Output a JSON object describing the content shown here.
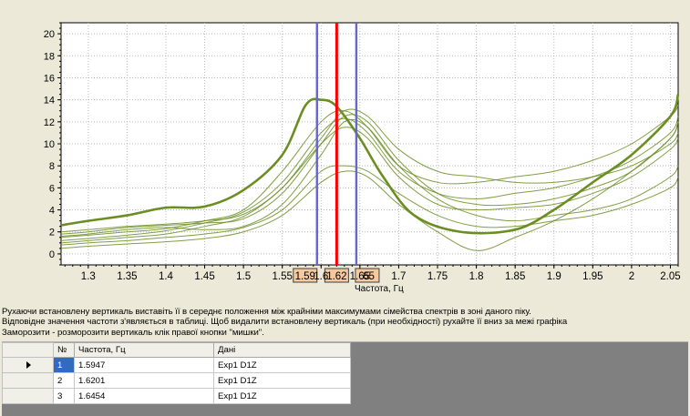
{
  "chart_data": {
    "type": "line",
    "title": "",
    "xlabel": "Частота, Гц",
    "ylabel": "",
    "xlim": [
      1.265,
      2.06
    ],
    "ylim": [
      -1,
      21
    ],
    "x_ticks": [
      "1.3",
      "1.35",
      "1.4",
      "1.45",
      "1.5",
      "1.55",
      "1.6",
      "1.65",
      "1.7",
      "1.75",
      "1.8",
      "1.85",
      "1.9",
      "1.95",
      "2",
      "2.05"
    ],
    "y_ticks": [
      "0",
      "2",
      "4",
      "6",
      "8",
      "10",
      "12",
      "14",
      "16",
      "18",
      "20"
    ],
    "grid": true,
    "line_color": "#6b8e23",
    "highlight_color": "#6b8e23",
    "series": [
      {
        "x": [
          1.265,
          1.3,
          1.35,
          1.4,
          1.45,
          1.5,
          1.55,
          1.58,
          1.6,
          1.62,
          1.65,
          1.68,
          1.72,
          1.78,
          1.85,
          1.9,
          1.95,
          2.0,
          2.05,
          2.06
        ],
        "y": [
          2.6,
          3.0,
          3.5,
          4.2,
          4.3,
          5.8,
          9.0,
          13.5,
          14.0,
          13.4,
          10.5,
          7.0,
          3.5,
          2.0,
          2.2,
          4.0,
          6.5,
          9.0,
          12.5,
          14.5
        ],
        "highlight": true
      },
      {
        "x": [
          1.265,
          1.3,
          1.35,
          1.4,
          1.45,
          1.5,
          1.55,
          1.6,
          1.63,
          1.66,
          1.7,
          1.75,
          1.8,
          1.85,
          1.9,
          1.95,
          2.0,
          2.05,
          2.06
        ],
        "y": [
          1.5,
          1.7,
          2.0,
          2.3,
          3.0,
          4.0,
          7.5,
          12.0,
          13.0,
          11.5,
          8.0,
          6.5,
          6.5,
          7.0,
          7.5,
          8.5,
          10.0,
          12.5,
          13.5
        ]
      },
      {
        "x": [
          1.265,
          1.3,
          1.35,
          1.4,
          1.45,
          1.5,
          1.55,
          1.6,
          1.63,
          1.66,
          1.7,
          1.75,
          1.8,
          1.85,
          1.9,
          1.95,
          2.0,
          2.05,
          2.06
        ],
        "y": [
          1.2,
          1.4,
          1.7,
          2.1,
          2.8,
          3.8,
          6.5,
          11.0,
          12.3,
          11.0,
          7.5,
          5.5,
          5.0,
          5.5,
          6.0,
          7.0,
          8.5,
          11.0,
          12.5
        ]
      },
      {
        "x": [
          1.265,
          1.3,
          1.35,
          1.4,
          1.45,
          1.5,
          1.55,
          1.6,
          1.63,
          1.66,
          1.7,
          1.75,
          1.8,
          1.85,
          1.9,
          1.95,
          2.0,
          2.05,
          2.06
        ],
        "y": [
          1.0,
          1.2,
          1.5,
          1.8,
          2.5,
          3.4,
          6.0,
          10.0,
          11.5,
          10.5,
          7.0,
          4.5,
          4.0,
          4.2,
          4.5,
          5.5,
          7.0,
          9.5,
          10.5
        ]
      },
      {
        "x": [
          1.265,
          1.3,
          1.35,
          1.4,
          1.45,
          1.5,
          1.55,
          1.6,
          1.63,
          1.66,
          1.7,
          1.75,
          1.8,
          1.85,
          1.9,
          1.95,
          2.0,
          2.05,
          2.06
        ],
        "y": [
          2.0,
          2.2,
          2.5,
          2.7,
          3.0,
          3.6,
          6.0,
          10.5,
          13.0,
          12.5,
          9.5,
          7.5,
          7.0,
          6.5,
          6.5,
          7.0,
          8.0,
          10.0,
          11.0
        ]
      },
      {
        "x": [
          1.265,
          1.3,
          1.35,
          1.4,
          1.45,
          1.5,
          1.55,
          1.6,
          1.63,
          1.66,
          1.7,
          1.75,
          1.8,
          1.85,
          1.9,
          1.95,
          2.0,
          2.05,
          2.06
        ],
        "y": [
          1.6,
          1.8,
          2.2,
          2.4,
          2.2,
          2.5,
          4.5,
          9.0,
          12.0,
          11.5,
          8.0,
          5.0,
          3.5,
          3.0,
          3.5,
          4.0,
          5.0,
          7.0,
          8.0
        ]
      },
      {
        "x": [
          1.265,
          1.3,
          1.35,
          1.4,
          1.45,
          1.5,
          1.55,
          1.6,
          1.63,
          1.66,
          1.7,
          1.75,
          1.8,
          1.85,
          1.9,
          1.95,
          2.0,
          2.05,
          2.06
        ],
        "y": [
          0.8,
          1.0,
          1.2,
          1.5,
          1.8,
          2.4,
          4.0,
          7.5,
          8.0,
          7.5,
          5.5,
          3.5,
          2.5,
          2.5,
          3.0,
          3.5,
          4.5,
          6.0,
          7.0
        ]
      },
      {
        "x": [
          1.265,
          1.3,
          1.35,
          1.4,
          1.45,
          1.5,
          1.55,
          1.6,
          1.63,
          1.66,
          1.7,
          1.75,
          1.8,
          1.85,
          1.9,
          1.95,
          2.0,
          2.05,
          2.06
        ],
        "y": [
          0.5,
          0.7,
          0.9,
          1.1,
          1.4,
          2.0,
          3.5,
          6.5,
          7.5,
          7.0,
          4.5,
          2.0,
          0.3,
          1.5,
          3.0,
          5.0,
          7.5,
          10.5,
          12.0
        ]
      },
      {
        "x": [
          1.265,
          1.3,
          1.35,
          1.4,
          1.45,
          1.5,
          1.55,
          1.6,
          1.63,
          1.66,
          1.7,
          1.75,
          1.8,
          1.85,
          1.9,
          1.95,
          2.0,
          2.05,
          2.06
        ],
        "y": [
          1.8,
          2.0,
          2.4,
          2.6,
          2.8,
          3.2,
          5.5,
          10.0,
          12.5,
          12.0,
          8.5,
          5.5,
          4.5,
          4.5,
          5.0,
          6.0,
          7.5,
          10.5,
          12.0
        ]
      }
    ],
    "cursor_lines": [
      {
        "x": 1.5947,
        "color": "#6666cc",
        "label": "1.59"
      },
      {
        "x": 1.6201,
        "color": "#ff0000",
        "label": "1.62"
      },
      {
        "x": 1.6454,
        "color": "#6666cc",
        "label": ".65"
      }
    ]
  },
  "instructions": {
    "line1": "Рухаючи встановлену вертикаль виставіть її в середнє положення між крайніми максимумами сімейства спектрів в зоні даного піку.",
    "line2": "Відповідне значення частоти з'являється в таблиці. Щоб видалити встановлену вертикаль (при необхідності) рухайте її вниз за межі графіка",
    "line3": "Заморозити - розморозити вертикаль клік правої кнопки \"мишки\"."
  },
  "table": {
    "headers": {
      "n": "№",
      "freq": "Частота, Гц",
      "data": "Дані"
    },
    "rows": [
      {
        "n": "1",
        "freq": "1.5947",
        "data": "Exp1 D1Z",
        "selected": true
      },
      {
        "n": "2",
        "freq": "1.6201",
        "data": "Exp1 D1Z"
      },
      {
        "n": "3",
        "freq": "1.6454",
        "data": "Exp1 D1Z"
      }
    ]
  }
}
